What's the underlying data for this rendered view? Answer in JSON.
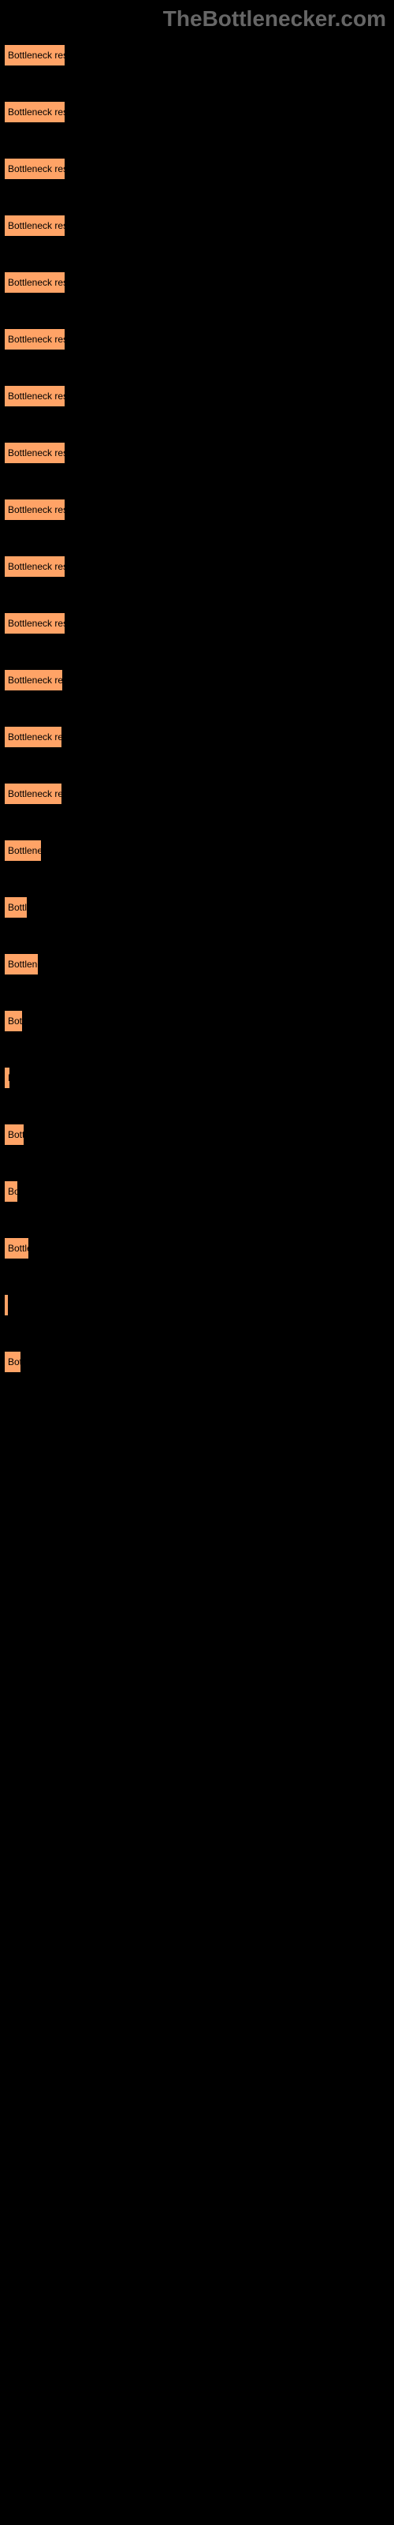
{
  "logo": "TheBottlenecker.com",
  "chart": {
    "type": "bar",
    "bar_color": "#ffa366",
    "bar_border": "#000000",
    "background_color": "#000000",
    "label_color": "#000000",
    "bar_text_fontsize": 12,
    "bars": [
      {
        "width": 78,
        "text": "Bottleneck result"
      },
      {
        "width": 78,
        "text": "Bottleneck result"
      },
      {
        "width": 78,
        "text": "Bottleneck result"
      },
      {
        "width": 78,
        "text": "Bottleneck result"
      },
      {
        "width": 78,
        "text": "Bottleneck result"
      },
      {
        "width": 78,
        "text": "Bottleneck result"
      },
      {
        "width": 78,
        "text": "Bottleneck result"
      },
      {
        "width": 78,
        "text": "Bottleneck result"
      },
      {
        "width": 78,
        "text": "Bottleneck result"
      },
      {
        "width": 78,
        "text": "Bottleneck result"
      },
      {
        "width": 78,
        "text": "Bottleneck result"
      },
      {
        "width": 75,
        "text": "Bottleneck resu"
      },
      {
        "width": 74,
        "text": "Bottleneck resu"
      },
      {
        "width": 74,
        "text": "Bottleneck resu"
      },
      {
        "width": 48,
        "text": "Bottleneck"
      },
      {
        "width": 30,
        "text": "Bottler"
      },
      {
        "width": 44,
        "text": "Bottlenec"
      },
      {
        "width": 24,
        "text": "Bottl"
      },
      {
        "width": 8,
        "text": "B"
      },
      {
        "width": 26,
        "text": "Bottl"
      },
      {
        "width": 18,
        "text": "Bo"
      },
      {
        "width": 32,
        "text": "Bottlen"
      },
      {
        "width": 2,
        "text": ""
      },
      {
        "width": 22,
        "text": "Bott"
      }
    ]
  }
}
